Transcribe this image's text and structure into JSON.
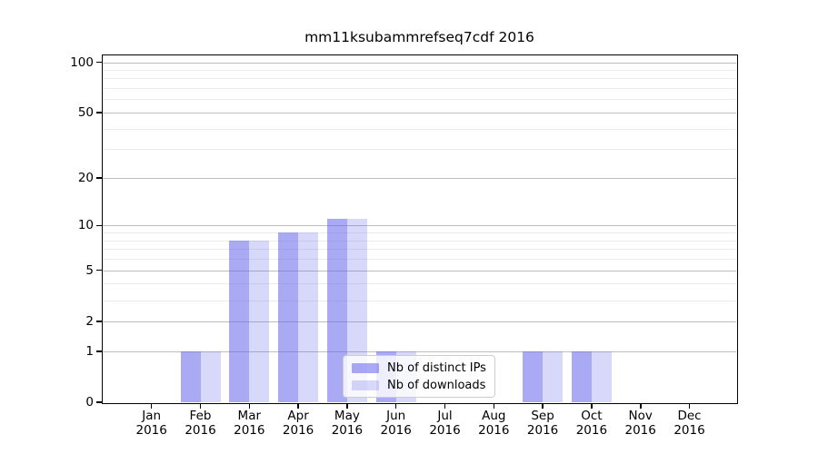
{
  "title": "mm11ksubammrefseq7cdf 2016",
  "chart_data": {
    "type": "bar",
    "title": "mm11ksubammrefseq7cdf 2016",
    "months": [
      "Jan",
      "Feb",
      "Mar",
      "Apr",
      "May",
      "Jun",
      "Jul",
      "Aug",
      "Sep",
      "Oct",
      "Nov",
      "Dec"
    ],
    "year": "2016",
    "categories": [
      "Jan 2016",
      "Feb 2016",
      "Mar 2016",
      "Apr 2016",
      "May 2016",
      "Jun 2016",
      "Jul 2016",
      "Aug 2016",
      "Sep 2016",
      "Oct 2016",
      "Nov 2016",
      "Dec 2016"
    ],
    "series": [
      {
        "name": "Nb of distinct IPs",
        "color": "rgba(100,100,235,0.55)",
        "values": [
          0,
          1,
          8,
          9,
          11,
          1,
          0,
          0,
          1,
          1,
          0,
          0
        ]
      },
      {
        "name": "Nb of downloads",
        "color": "rgba(100,100,235,0.25)",
        "values": [
          0,
          1,
          8,
          9,
          11,
          1,
          0,
          0,
          1,
          1,
          0,
          0
        ]
      }
    ],
    "xlabel": "",
    "ylabel": "",
    "yscale": "log10(1+x)",
    "ylim": [
      0,
      101
    ],
    "yticks": [
      0,
      1,
      2,
      5,
      10,
      20,
      50,
      100
    ],
    "yticks_minor": [
      3,
      4,
      6,
      7,
      8,
      9,
      30,
      40,
      60,
      70,
      80,
      90
    ],
    "grid": "on",
    "legend_position": "lower center"
  },
  "colors": {
    "major_grid": "#bdbdbd",
    "minor_grid": "#ebebeb",
    "spine": "#000000",
    "background": "#ffffff",
    "bar_dark": "rgba(100,100,235,0.55)",
    "bar_light": "rgba(100,100,235,0.25)"
  }
}
